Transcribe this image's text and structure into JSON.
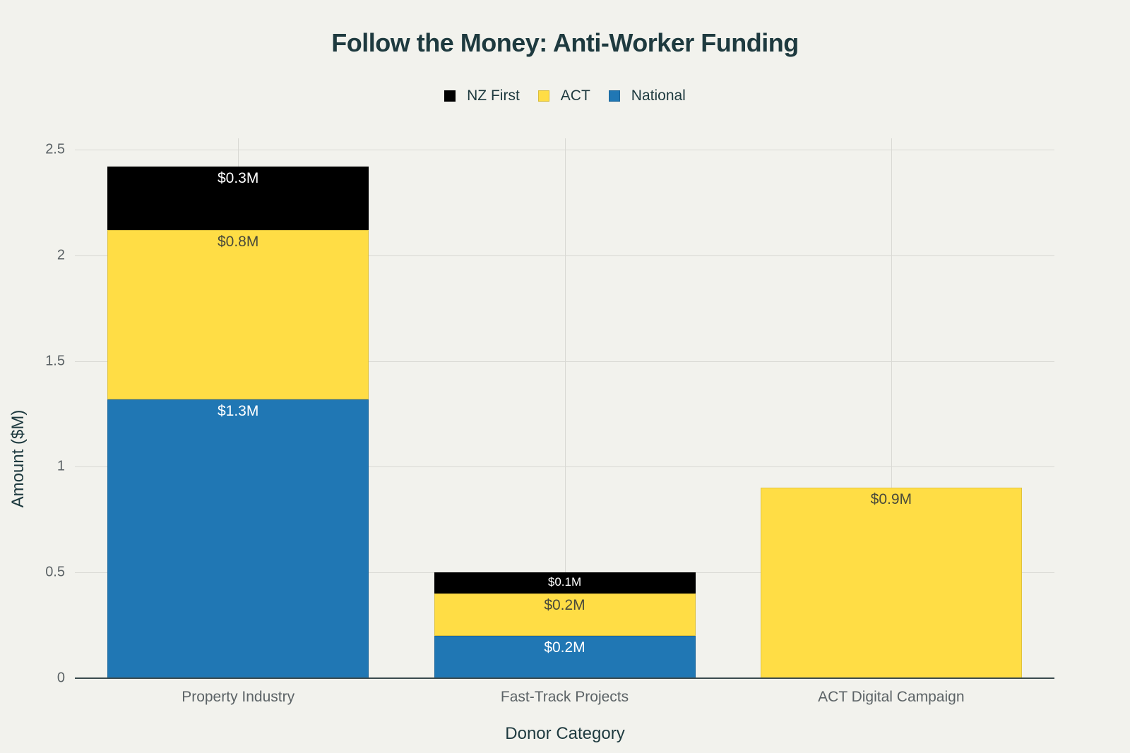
{
  "chart_data": {
    "type": "bar",
    "stacked": true,
    "title": "Follow the Money: Anti-Worker Funding",
    "xlabel": "Donor Category",
    "ylabel": "Amount ($M)",
    "ylim": [
      0,
      2.5
    ],
    "yticks": [
      "0",
      "0.5",
      "1",
      "1.5",
      "2",
      "2.5"
    ],
    "grid": true,
    "legend_position": "top-center",
    "categories": [
      "Property Industry",
      "Fast-Track Projects",
      "ACT Digital Campaign"
    ],
    "series": [
      {
        "name": "National",
        "color": "#2077b4",
        "values": [
          1.32,
          0.2,
          0
        ],
        "labels": [
          "$1.3M",
          "$0.2M",
          ""
        ]
      },
      {
        "name": "ACT",
        "color": "#ffdd45",
        "values": [
          0.8,
          0.2,
          0.9
        ],
        "labels": [
          "$0.8M",
          "$0.2M",
          "$0.9M"
        ]
      },
      {
        "name": "NZ First",
        "color": "#000000",
        "values": [
          0.3,
          0.1,
          0
        ],
        "labels": [
          "$0.3M",
          "$0.1M",
          ""
        ]
      }
    ]
  },
  "legend": [
    {
      "name": "NZ First",
      "color": "#000000"
    },
    {
      "name": "ACT",
      "color": "#ffdd45"
    },
    {
      "name": "National",
      "color": "#2077b4"
    }
  ]
}
